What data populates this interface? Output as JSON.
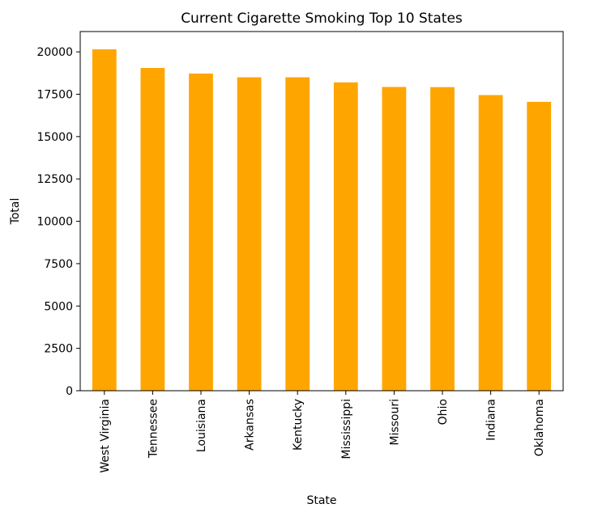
{
  "chart_data": {
    "type": "bar",
    "title": "Current Cigarette Smoking Top 10 States",
    "xlabel": "State",
    "ylabel": "Total",
    "categories": [
      "West Virginia",
      "Tennessee",
      "Louisiana",
      "Arkansas",
      "Kentucky",
      "Mississippi",
      "Missouri",
      "Ohio",
      "Indiana",
      "Oklahoma"
    ],
    "values": [
      20150,
      19050,
      18720,
      18500,
      18500,
      18200,
      17930,
      17920,
      17450,
      17050
    ],
    "ylim": [
      0,
      21200
    ],
    "yticks": [
      0,
      2500,
      5000,
      7500,
      10000,
      12500,
      15000,
      17500,
      20000
    ],
    "grid": false,
    "legend": "none",
    "bar_color": "#ffa500"
  }
}
